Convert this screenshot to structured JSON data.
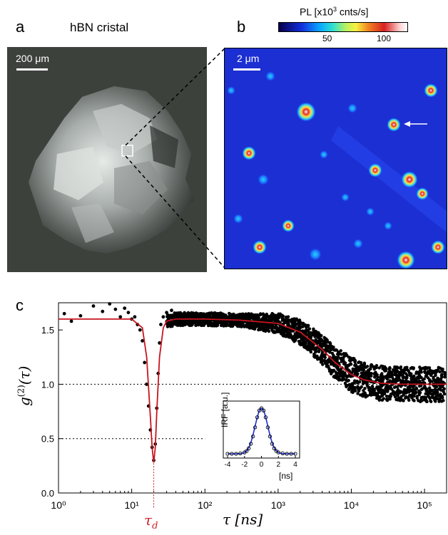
{
  "panel_a": {
    "letter": "a",
    "title": "hBN cristal",
    "scale_bar": "200 μm"
  },
  "panel_b": {
    "letter": "b",
    "colorbar_label_prefix": "PL [x10",
    "colorbar_label_exp": "3",
    "colorbar_label_suffix": " cnts/s]",
    "colorbar_ticks": [
      "50",
      "100"
    ],
    "scale_bar": "2 μm"
  },
  "panel_c": {
    "letter": "c",
    "ylabel": "g",
    "ylabel_sup": "(2)",
    "ylabel_arg": "(τ)",
    "xlabel": "τ [ns]",
    "marker_label": "τ",
    "marker_sub": "d",
    "inset": {
      "ylabel": "IRF [a.u.]",
      "xlabel": "[ns]",
      "x_ticks": [
        "-4",
        "-2",
        "0",
        "2",
        "4"
      ]
    }
  },
  "chart_data": [
    {
      "type": "scatter",
      "panel": "c",
      "xscale": "log",
      "xlim": [
        1,
        200000
      ],
      "ylim": [
        0.0,
        1.75
      ],
      "x_ticks": [
        "10⁰",
        "10¹",
        "10²",
        "10³",
        "10⁴",
        "10⁵"
      ],
      "y_ticks": [
        "0.0",
        "0.5",
        "1.0",
        "1.5"
      ],
      "reference_lines": [
        1.0,
        0.5
      ],
      "marker_x": 20,
      "series": [
        {
          "kind": "points",
          "x": [
            1.2,
            1.5,
            2,
            3,
            4,
            5,
            6,
            7,
            8,
            9,
            10,
            11,
            12,
            13,
            14,
            15,
            16,
            17,
            18,
            19,
            20,
            21,
            22,
            23,
            24,
            25,
            27,
            30,
            35,
            50,
            100,
            300,
            1000,
            2000,
            5000,
            10000,
            20000,
            50000,
            100000,
            180000
          ],
          "y": [
            1.65,
            1.58,
            1.63,
            1.72,
            1.67,
            1.74,
            1.69,
            1.62,
            1.7,
            1.66,
            1.6,
            1.62,
            1.55,
            1.5,
            1.4,
            1.2,
            1.0,
            0.8,
            0.58,
            0.42,
            0.3,
            0.45,
            0.78,
            1.1,
            1.38,
            1.55,
            1.62,
            1.66,
            1.68,
            1.64,
            1.62,
            1.6,
            1.58,
            1.52,
            1.35,
            1.1,
            1.02,
            1.0,
            1.01,
            1.0
          ]
        },
        {
          "kind": "fit",
          "color": "#c8141e",
          "x": [
            1,
            10,
            14,
            16,
            18,
            19,
            20,
            21,
            22,
            24,
            27,
            30,
            40,
            100,
            300,
            1000,
            2000,
            4000,
            6000,
            10000,
            15000,
            25000,
            50000,
            200000
          ],
          "y": [
            1.6,
            1.6,
            1.52,
            1.25,
            0.7,
            0.42,
            0.28,
            0.42,
            0.75,
            1.25,
            1.52,
            1.58,
            1.6,
            1.6,
            1.59,
            1.56,
            1.48,
            1.32,
            1.2,
            1.09,
            1.04,
            1.01,
            1.0,
            1.0
          ]
        }
      ]
    },
    {
      "type": "scatter",
      "panel": "c-inset",
      "xlim": [
        -4,
        4
      ],
      "series": [
        {
          "kind": "points",
          "x": [
            -4.0,
            -3.5,
            -3.0,
            -2.5,
            -2.0,
            -1.75,
            -1.5,
            -1.25,
            -1.0,
            -0.75,
            -0.5,
            -0.25,
            0.0,
            0.25,
            0.5,
            0.75,
            1.0,
            1.25,
            1.5,
            1.75,
            2.0,
            2.5,
            3.0,
            3.5,
            4.0
          ],
          "y": [
            0.0,
            0.0,
            0.0,
            0.01,
            0.03,
            0.06,
            0.12,
            0.22,
            0.38,
            0.58,
            0.8,
            0.95,
            1.0,
            0.95,
            0.8,
            0.58,
            0.38,
            0.22,
            0.12,
            0.06,
            0.03,
            0.01,
            0.0,
            0.0,
            0.0
          ]
        }
      ]
    }
  ]
}
